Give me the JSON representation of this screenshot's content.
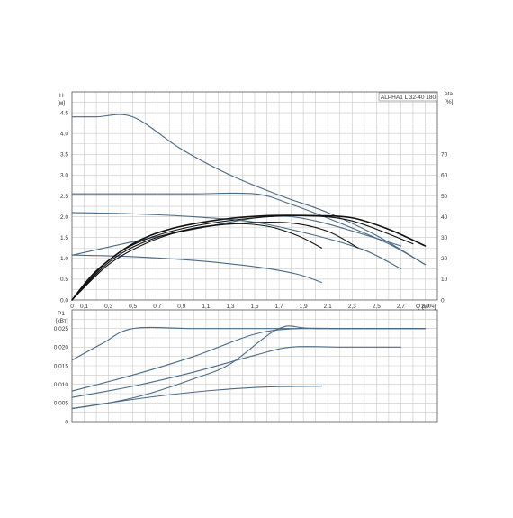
{
  "chart_data": {
    "type": "line",
    "title": "ALPHA1 L 32-40 180",
    "head_chart": {
      "ylabel": "H",
      "yunit": "[м]",
      "ylim": [
        0,
        5.0
      ],
      "yticks": [
        "0.0",
        "0.5",
        "1.0",
        "1.5",
        "2.0",
        "2.5",
        "3.0",
        "3.5",
        "4.0",
        "4.5"
      ],
      "y2label": "eta",
      "y2unit": "[%]",
      "y2lim": [
        0,
        100
      ],
      "y2ticks": [
        "0",
        "10",
        "20",
        "30",
        "40",
        "50",
        "60",
        "70"
      ],
      "xlabel": "Q",
      "xunit": "[м³/ч]",
      "xlim": [
        0,
        3.0
      ],
      "xticks": [
        "0",
        "0,1",
        "0,3",
        "0,5",
        "0,7",
        "0,9",
        "1,1",
        "1,3",
        "1,5",
        "1,7",
        "1,9",
        "2,1",
        "2,3",
        "2,5",
        "2,7",
        "2,9"
      ],
      "grid": true,
      "series": [
        {
          "axis": "H",
          "color": "#4a6a86",
          "width": 1.1,
          "x": [
            0,
            0.2,
            0.5,
            0.9,
            1.3,
            1.7,
            2.1,
            2.5,
            2.9
          ],
          "y": [
            4.4,
            4.4,
            4.4,
            3.62,
            3.0,
            2.52,
            2.1,
            1.55,
            0.85
          ]
        },
        {
          "axis": "H",
          "color": "#4a6a86",
          "width": 1.1,
          "x": [
            0,
            0.5,
            1.0,
            1.5,
            1.8,
            2.2,
            2.6,
            2.9
          ],
          "y": [
            2.55,
            2.55,
            2.55,
            2.55,
            2.3,
            1.85,
            1.35,
            0.85
          ]
        },
        {
          "axis": "H",
          "color": "#4a6a86",
          "width": 1.1,
          "x": [
            0,
            0.5,
            1.0,
            1.5,
            2.0,
            2.4,
            2.7
          ],
          "y": [
            2.1,
            2.07,
            2.0,
            1.87,
            1.55,
            1.2,
            0.75
          ]
        },
        {
          "axis": "H",
          "color": "#4a6a86",
          "width": 1.1,
          "x": [
            0,
            0.5,
            1.0,
            1.5,
            1.85,
            2.05
          ],
          "y": [
            1.08,
            1.04,
            0.95,
            0.8,
            0.62,
            0.42
          ]
        },
        {
          "axis": "eta",
          "color": "#4a6a86",
          "width": 1.1,
          "x": [
            0,
            0.5,
            1.0,
            1.6,
            2.0,
            2.7
          ],
          "y": [
            21.5,
            28,
            34,
            40,
            38,
            26
          ]
        },
        {
          "axis": "eta",
          "color": "#111111",
          "width": 1.6,
          "x": [
            0,
            0.2,
            0.5,
            0.8,
            1.2,
            1.6,
            2.0,
            2.3,
            2.6,
            2.9
          ],
          "y": [
            0,
            14,
            27,
            34,
            38.5,
            40.5,
            40.5,
            39.5,
            34,
            26
          ]
        },
        {
          "axis": "eta",
          "color": "#111111",
          "width": 1.1,
          "x": [
            0,
            0.3,
            0.6,
            1.0,
            1.5,
            1.9,
            2.3,
            2.8
          ],
          "y": [
            0,
            19,
            29,
            35.5,
            39.5,
            40.5,
            38,
            27
          ]
        },
        {
          "axis": "eta",
          "color": "#111111",
          "width": 1.1,
          "x": [
            0,
            0.3,
            0.6,
            1.0,
            1.4,
            1.8,
            2.1,
            2.35
          ],
          "y": [
            0,
            18,
            28,
            34.5,
            37,
            37,
            33,
            25
          ]
        },
        {
          "axis": "eta",
          "color": "#111111",
          "width": 1.1,
          "x": [
            0,
            0.3,
            0.6,
            0.9,
            1.3,
            1.6,
            1.85,
            2.05
          ],
          "y": [
            0,
            17,
            27,
            33,
            36.5,
            35.5,
            31,
            25
          ]
        }
      ]
    },
    "power_chart": {
      "ylabel": "P1",
      "yunit": "[кВт]",
      "ylim": [
        0,
        0.03
      ],
      "yticks": [
        "0",
        "0,005",
        "0,010",
        "0,015",
        "0,020",
        "0,025"
      ],
      "xlim": [
        0,
        3.0
      ],
      "grid": true,
      "series": [
        {
          "color": "#4a6a86",
          "width": 1.1,
          "x": [
            0,
            0.25,
            0.5,
            1.0,
            1.5,
            2.0,
            2.5,
            2.9
          ],
          "y": [
            0.0165,
            0.021,
            0.025,
            0.025,
            0.025,
            0.025,
            0.025,
            0.025
          ]
        },
        {
          "color": "#4a6a86",
          "width": 1.1,
          "x": [
            0,
            0.5,
            1.0,
            1.5,
            1.85,
            2.2,
            2.5,
            2.9
          ],
          "y": [
            0.0082,
            0.0125,
            0.0175,
            0.0235,
            0.025,
            0.025,
            0.025,
            0.025
          ]
        },
        {
          "color": "#4a6a86",
          "width": 1.1,
          "x": [
            0,
            0.5,
            1.0,
            1.5,
            1.8,
            2.2,
            2.7
          ],
          "y": [
            0.0065,
            0.0095,
            0.0133,
            0.0178,
            0.02,
            0.02,
            0.02
          ]
        },
        {
          "color": "#4a6a86",
          "width": 1.1,
          "x": [
            0,
            0.3,
            0.6,
            1.0,
            1.3,
            1.7,
            2.0,
            2.9
          ],
          "y": [
            0.0035,
            0.005,
            0.0072,
            0.0115,
            0.0155,
            0.025,
            0.025,
            0.025
          ]
        },
        {
          "color": "#4a6a86",
          "width": 1.1,
          "x": [
            0,
            0.4,
            0.8,
            1.2,
            1.6,
            2.05
          ],
          "y": [
            0.0035,
            0.0055,
            0.0072,
            0.0085,
            0.0093,
            0.0095
          ]
        }
      ]
    }
  }
}
